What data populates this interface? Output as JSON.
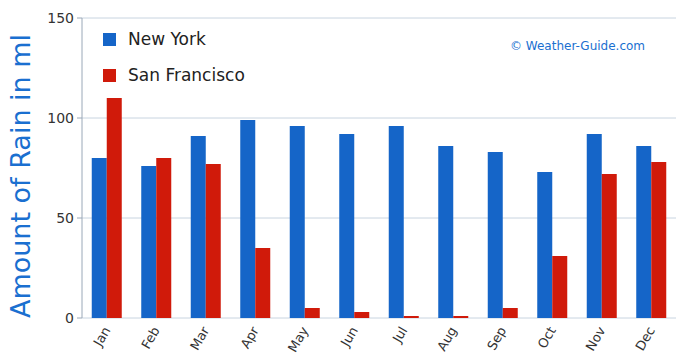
{
  "chart_data": {
    "type": "bar",
    "y_label": "Amount of Rain in ml",
    "annotations": [
      "© Weather-Guide.com"
    ],
    "categories": [
      "Jan",
      "Feb",
      "Mar",
      "Apr",
      "May",
      "Jun",
      "Jul",
      "Aug",
      "Sep",
      "Oct",
      "Nov",
      "Dec"
    ],
    "series": [
      {
        "name": "New York",
        "color": "#1565c8",
        "values": [
          80,
          76,
          91,
          99,
          96,
          92,
          96,
          86,
          83,
          73,
          92,
          86
        ]
      },
      {
        "name": "San Francisco",
        "color": "#d01a0a",
        "values": [
          110,
          80,
          77,
          35,
          5,
          3,
          1,
          1,
          5,
          31,
          72,
          78
        ]
      }
    ],
    "ylim": [
      0,
      150
    ],
    "yticks": [
      0,
      50,
      100,
      150
    ],
    "grid": true,
    "legend": "upper left"
  }
}
